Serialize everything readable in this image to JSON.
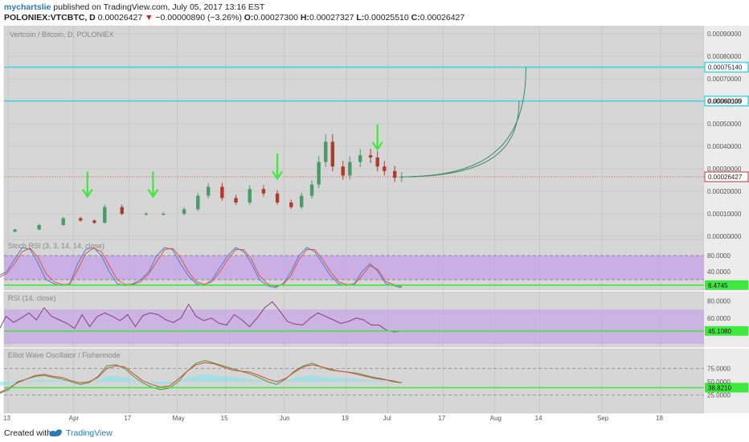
{
  "header": {
    "author": "mychartslie",
    "published": " published on TradingView.com, July 05, 2017 13:16 EST",
    "symbol": "POLONIEX:VTCBTC, D",
    "last": "0.00026427",
    "change": "−0.00000890 (−3.26%)",
    "open_label": "O:",
    "open": "0.00027300",
    "high_label": "H:",
    "high": "0.00027327",
    "low_label": "L:",
    "low": "0.00025510",
    "close_label": "C:",
    "close": "0.00026427"
  },
  "footer": {
    "created_with": "Created with",
    "brand": "TradingView"
  },
  "colors": {
    "panel_bg": "#d6d6d6",
    "grid": "#c4c4c4",
    "cyan": "#3fd6e0",
    "green": "#3ee83e",
    "up": "#4a9a6a",
    "down": "#b23a2c",
    "stoch_k": "#4a7ed8",
    "stoch_d": "#e0543c",
    "band": "#c8a8e6",
    "rsi": "#8a3a8a",
    "fisher_a": "#4a9a3a",
    "fisher_b": "#d24a3a",
    "area": "#86e3ec"
  },
  "chart_data": [
    {
      "type": "candlestick",
      "title": "Vertcoin / Bitcoin, D, POLONIEX",
      "ylim": [
        0,
        0.0009
      ],
      "y_ticks": [
        "0.00090000",
        "0.00080000",
        "0.00070000",
        "0.00060000",
        "0.00050000",
        "0.00040000",
        "0.00030000",
        "0.00020000",
        "0.00010000",
        "0.00000000"
      ],
      "x_ticks": [
        "13",
        "Apr",
        "17",
        "May",
        "15",
        "Jun",
        "19",
        "Jul",
        "17",
        "Aug",
        "14",
        "Sep",
        "18"
      ],
      "x_tick_dates": [
        "2017-03-13",
        "2017-04-01",
        "2017-04-17",
        "2017-05-01",
        "2017-05-15",
        "2017-06-01",
        "2017-06-19",
        "2017-07-01",
        "2017-07-17",
        "2017-08-01",
        "2017-08-14",
        "2017-09-01",
        "2017-09-18"
      ],
      "horizontal_lines": [
        {
          "value": 0.0007514,
          "label": "0.00075140"
        },
        {
          "value": 0.00060109,
          "label": "0.00060109"
        }
      ],
      "last_price": {
        "value": 0.00026427,
        "label": "0.00026427"
      },
      "closes": [
        {
          "date": "2017-03-08",
          "close": 2e-05
        },
        {
          "date": "2017-03-15",
          "close": 3e-05
        },
        {
          "date": "2017-03-22",
          "close": 5e-05
        },
        {
          "date": "2017-03-29",
          "close": 8e-05
        },
        {
          "date": "2017-04-03",
          "close": 7e-05
        },
        {
          "date": "2017-04-07",
          "close": 6e-05
        },
        {
          "date": "2017-04-10",
          "close": 0.00013
        },
        {
          "date": "2017-04-15",
          "close": 0.0001
        },
        {
          "date": "2017-04-22",
          "close": 0.0001
        },
        {
          "date": "2017-04-27",
          "close": 0.0001
        },
        {
          "date": "2017-05-03",
          "close": 0.00012
        },
        {
          "date": "2017-05-07",
          "close": 0.00018
        },
        {
          "date": "2017-05-10",
          "close": 0.00022
        },
        {
          "date": "2017-05-14",
          "close": 0.00017
        },
        {
          "date": "2017-05-18",
          "close": 0.00015
        },
        {
          "date": "2017-05-22",
          "close": 0.00021
        },
        {
          "date": "2017-05-26",
          "close": 0.00019
        },
        {
          "date": "2017-05-30",
          "close": 0.00015
        },
        {
          "date": "2017-06-03",
          "close": 0.00013
        },
        {
          "date": "2017-06-06",
          "close": 0.00018
        },
        {
          "date": "2017-06-09",
          "close": 0.00023
        },
        {
          "date": "2017-06-11",
          "close": 0.00033
        },
        {
          "date": "2017-06-13",
          "close": 0.00042
        },
        {
          "date": "2017-06-15",
          "close": 0.00031
        },
        {
          "date": "2017-06-18",
          "close": 0.00027
        },
        {
          "date": "2017-06-20",
          "close": 0.00033
        },
        {
          "date": "2017-06-23",
          "close": 0.00036
        },
        {
          "date": "2017-06-26",
          "close": 0.00035
        },
        {
          "date": "2017-06-28",
          "close": 0.00031
        },
        {
          "date": "2017-06-30",
          "close": 0.00029
        },
        {
          "date": "2017-07-03",
          "close": 0.00026
        },
        {
          "date": "2017-07-05",
          "close": 0.00026427
        }
      ],
      "projection_curves": [
        {
          "end_date": "2017-08-10",
          "end_value": 0.0007514
        },
        {
          "end_date": "2017-08-08",
          "end_value": 0.00060109
        }
      ],
      "arrows": [
        {
          "date": "2017-04-05",
          "value": 0.00018
        },
        {
          "date": "2017-04-24",
          "value": 0.00018
        },
        {
          "date": "2017-05-30",
          "value": 0.00026
        },
        {
          "date": "2017-06-28",
          "value": 0.00039
        }
      ]
    },
    {
      "type": "line",
      "title": "Stoch RSI (3, 3, 14, 14, close)",
      "ylim": [
        0,
        100
      ],
      "y_ticks": [
        "80.0000",
        "40.0000"
      ],
      "band": [
        20,
        80
      ],
      "level_line": {
        "value": 6.4745,
        "label": "6.4745"
      },
      "series": [
        {
          "name": "K",
          "values": [
            20,
            30,
            40,
            70,
            100,
            95,
            60,
            20,
            10,
            5,
            10,
            60,
            95,
            100,
            80,
            40,
            10,
            5,
            10,
            20,
            40,
            80,
            100,
            95,
            60,
            30,
            10,
            5,
            20,
            50,
            80,
            100,
            90,
            60,
            20,
            5,
            0,
            10,
            40,
            80,
            100,
            90,
            60,
            30,
            10,
            5,
            10,
            40,
            60,
            40,
            10,
            5,
            0
          ]
        },
        {
          "name": "D",
          "values": [
            15,
            25,
            35,
            60,
            90,
            98,
            75,
            35,
            15,
            8,
            8,
            45,
            85,
            98,
            90,
            55,
            20,
            8,
            8,
            15,
            35,
            65,
            95,
            98,
            75,
            40,
            15,
            8,
            15,
            40,
            70,
            95,
            95,
            70,
            30,
            10,
            3,
            8,
            30,
            70,
            95,
            95,
            70,
            40,
            15,
            8,
            8,
            30,
            55,
            45,
            15,
            8,
            3
          ]
        }
      ]
    },
    {
      "type": "line",
      "title": "RSI (14, close)",
      "ylim": [
        30,
        85
      ],
      "y_ticks": [
        "80.0000",
        "60.0000"
      ],
      "band": [
        30,
        70
      ],
      "level_line": {
        "value": 45.108,
        "label": "45.1080"
      },
      "series": [
        {
          "name": "RSI",
          "values": [
            42,
            45,
            62,
            55,
            60,
            66,
            58,
            72,
            62,
            58,
            54,
            48,
            64,
            50,
            62,
            66,
            62,
            57,
            64,
            50,
            63,
            66,
            64,
            58,
            55,
            60,
            76,
            62,
            57,
            60,
            54,
            52,
            64,
            58,
            50,
            60,
            72,
            79,
            68,
            56,
            53,
            52,
            60,
            66,
            62,
            58,
            54,
            56,
            60,
            58,
            52,
            52,
            46,
            44,
            45
          ]
        }
      ]
    },
    {
      "type": "line",
      "title": "Elliot Wave Oscillator / Fishermode",
      "ylim": [
        0,
        100
      ],
      "y_ticks": [
        "75.0000",
        "50.0000",
        "25.0000"
      ],
      "level_line": {
        "value": 38.821,
        "label": "38.8210"
      },
      "series": [
        {
          "name": "A",
          "values": [
            30,
            28,
            35,
            50,
            55,
            60,
            62,
            58,
            55,
            50,
            45,
            48,
            60,
            80,
            82,
            75,
            60,
            48,
            40,
            35,
            38,
            50,
            70,
            85,
            90,
            85,
            80,
            75,
            70,
            65,
            58,
            50,
            45,
            55,
            70,
            80,
            85,
            78,
            72,
            70,
            68,
            66,
            62,
            58,
            55,
            50,
            48
          ]
        },
        {
          "name": "B",
          "values": [
            32,
            30,
            38,
            48,
            55,
            62,
            64,
            60,
            58,
            52,
            48,
            50,
            58,
            75,
            80,
            78,
            65,
            52,
            45,
            40,
            42,
            55,
            70,
            82,
            86,
            84,
            78,
            72,
            70,
            68,
            62,
            55,
            50,
            56,
            68,
            78,
            82,
            78,
            74,
            70,
            68,
            64,
            60,
            56,
            54,
            52,
            48
          ]
        }
      ]
    }
  ]
}
